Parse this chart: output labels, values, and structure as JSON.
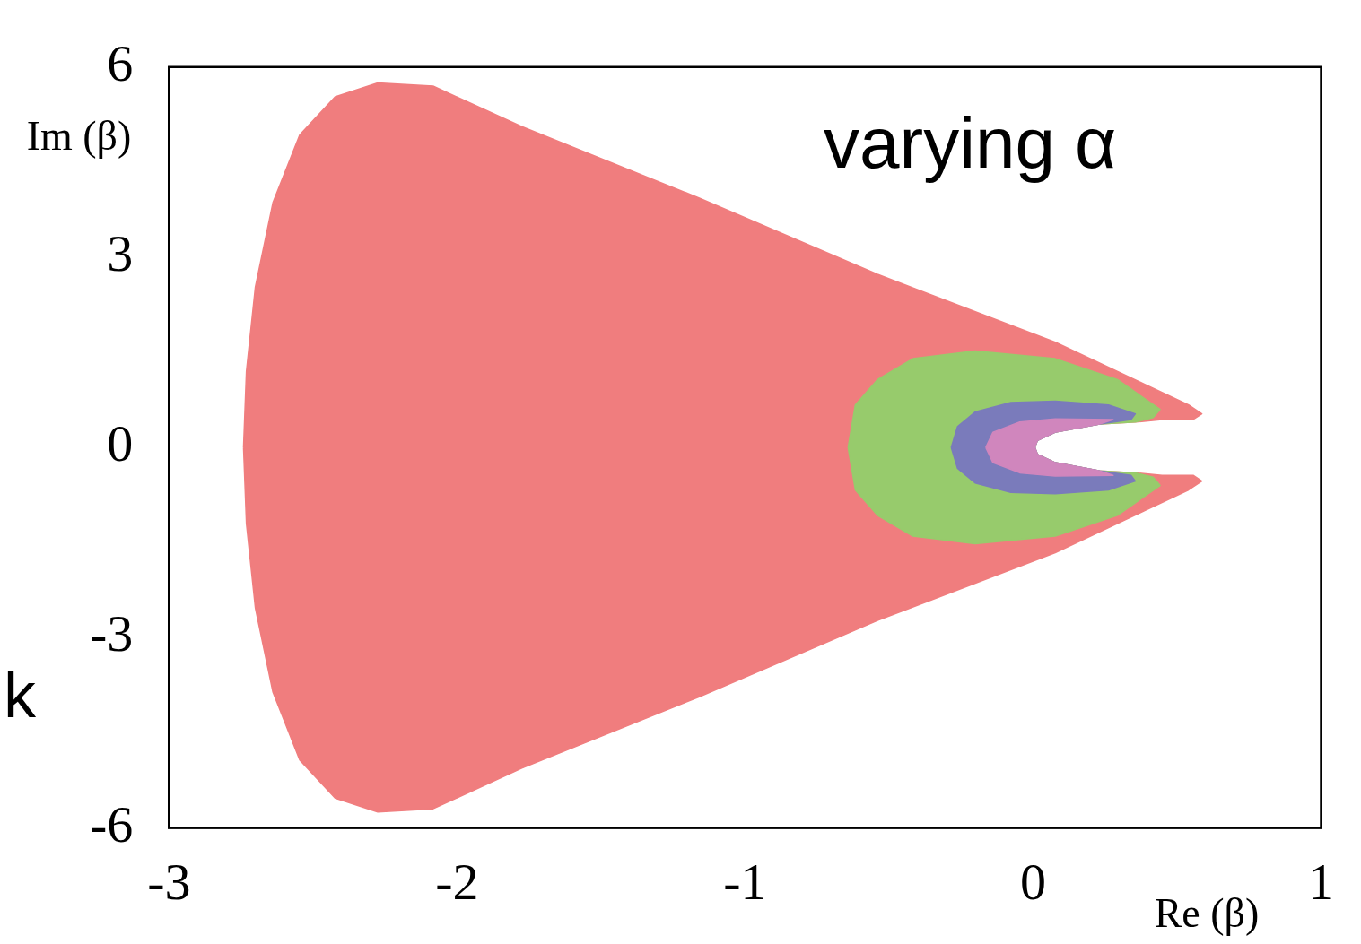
{
  "chart_data": {
    "type": "area",
    "xlabel": "Re (β)",
    "ylabel": "Im (β)",
    "annotations": [
      "varying α",
      "k"
    ],
    "xlim": [
      -3,
      1
    ],
    "xticks": [
      -3,
      -2,
      -1,
      0,
      1
    ],
    "ylim": [
      -6,
      6
    ],
    "yticks": [
      -6,
      -3,
      0,
      3,
      6
    ],
    "series": [
      {
        "color": "#f07d7e",
        "x": [
          -2.741,
          -2.731,
          -2.7,
          -2.639,
          -2.546,
          -2.423,
          -2.275,
          -2.083,
          -1.775,
          -1.157,
          -0.54,
          0.077,
          0.386,
          0.54,
          0.586,
          0.556,
          0.448,
          0.355,
          0.231,
          0.077,
          0.015,
          0.006,
          0.015,
          0.077,
          0.231,
          0.355,
          0.448,
          0.556,
          0.586,
          0.54,
          0.386,
          0.077,
          -0.54,
          -1.157,
          -1.775,
          -2.083,
          -2.275,
          -2.423,
          -2.546,
          -2.639,
          -2.7,
          -2.731,
          -2.741
        ],
        "values": [
          0,
          1.2,
          2.53,
          3.86,
          4.93,
          5.53,
          5.75,
          5.7,
          5.06,
          3.93,
          2.73,
          1.66,
          1.0,
          0.67,
          0.53,
          0.44,
          0.44,
          0.4,
          0.37,
          0.24,
          0.11,
          0,
          -0.11,
          -0.24,
          -0.37,
          -0.4,
          -0.44,
          -0.44,
          -0.53,
          -0.67,
          -1.0,
          -1.66,
          -2.73,
          -3.93,
          -5.06,
          -5.7,
          -5.75,
          -5.53,
          -4.93,
          -3.86,
          -2.53,
          -1.2,
          0
        ]
      },
      {
        "color": "#97cb6c",
        "x": [
          -0.642,
          -0.617,
          -0.54,
          -0.417,
          -0.201,
          0.077,
          0.293,
          0.441,
          0.417,
          0.355,
          0.231,
          0.077,
          0.015,
          0.006,
          0.015,
          0.077,
          0.231,
          0.355,
          0.417,
          0.441,
          0.293,
          0.077,
          -0.201,
          -0.417,
          -0.54,
          -0.617,
          -0.642
        ],
        "values": [
          0,
          0.67,
          1.07,
          1.4,
          1.52,
          1.4,
          1.07,
          0.6,
          0.47,
          0.4,
          0.37,
          0.24,
          0.11,
          0,
          -0.11,
          -0.24,
          -0.37,
          -0.4,
          -0.47,
          -0.6,
          -1.07,
          -1.4,
          -1.52,
          -1.4,
          -1.07,
          -0.67,
          0
        ]
      },
      {
        "color": "#7a7bbb",
        "x": [
          -0.284,
          -0.262,
          -0.201,
          -0.077,
          0.077,
          0.262,
          0.355,
          0.34,
          0.231,
          0.077,
          0.015,
          0.006,
          0.015,
          0.077,
          0.231,
          0.34,
          0.355,
          0.262,
          0.077,
          -0.077,
          -0.201,
          -0.262,
          -0.284
        ],
        "values": [
          0,
          0.33,
          0.56,
          0.71,
          0.73,
          0.67,
          0.53,
          0.44,
          0.37,
          0.24,
          0.11,
          0,
          -0.11,
          -0.24,
          -0.37,
          -0.44,
          -0.53,
          -0.67,
          -0.73,
          -0.71,
          -0.56,
          -0.33,
          0
        ]
      },
      {
        "color": "#d086bd",
        "x": [
          -0.164,
          -0.139,
          -0.046,
          0.077,
          0.278,
          0.231,
          0.077,
          0.015,
          0.006,
          0.015,
          0.077,
          0.231,
          0.278,
          0.077,
          -0.046,
          -0.139,
          -0.164
        ],
        "values": [
          0,
          0.24,
          0.4,
          0.45,
          0.44,
          0.37,
          0.24,
          0.11,
          0,
          -0.11,
          -0.24,
          -0.37,
          -0.44,
          -0.45,
          -0.4,
          -0.24,
          0
        ]
      }
    ]
  }
}
